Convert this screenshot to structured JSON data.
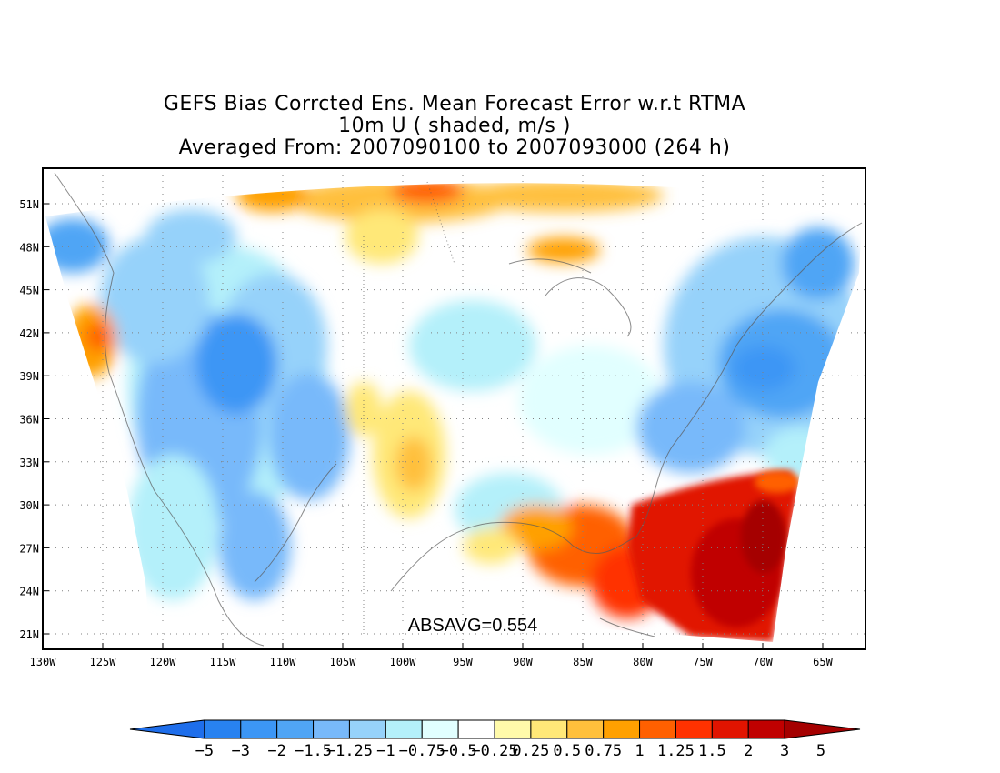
{
  "header": {
    "title": "GEFS Bias Corrcted Ens. Mean Forecast Error w.r.t RTMA",
    "variable": "10m U ( shaded, m/s )",
    "period": "Averaged From: 2007090100 to 2007093000 (264 h)"
  },
  "stat_label": "ABSAVG=0.554",
  "axes": {
    "lat_labels": [
      "51N",
      "48N",
      "45N",
      "42N",
      "39N",
      "36N",
      "33N",
      "30N",
      "27N",
      "24N",
      "21N"
    ],
    "lon_labels": [
      "130W",
      "125W",
      "120W",
      "115W",
      "110W",
      "105W",
      "100W",
      "95W",
      "90W",
      "85W",
      "80W",
      "75W",
      "70W",
      "65W"
    ]
  },
  "colorbar": {
    "labels": [
      "-5",
      "-3",
      "-2",
      "-1.5",
      "-1.25",
      "-1",
      "-0.75",
      "-0.5",
      "-0.25",
      "0.25",
      "0.5",
      "0.75",
      "1",
      "1.25",
      "1.5",
      "2",
      "3",
      "5"
    ],
    "colors": [
      "#1e6eeb",
      "#2882f0",
      "#3c96f5",
      "#50a5f5",
      "#78b9fa",
      "#96d2fa",
      "#b4f0fa",
      "#e1ffff",
      "#ffffff",
      "#fffaaa",
      "#ffe878",
      "#ffc03c",
      "#ffa000",
      "#ff6000",
      "#ff3200",
      "#e11400",
      "#c00000",
      "#a50000"
    ]
  },
  "map_regions": [
    {
      "name": "gulf-warm-region",
      "color": "#e11400"
    },
    {
      "name": "atlantic-warm-core",
      "color": "#c00000"
    },
    {
      "name": "northeast-cool-region",
      "color": "#50a5f5"
    },
    {
      "name": "west-cool-region",
      "color": "#3c96f5"
    },
    {
      "name": "northern-plains-warm-band",
      "color": "#ffa000"
    }
  ]
}
